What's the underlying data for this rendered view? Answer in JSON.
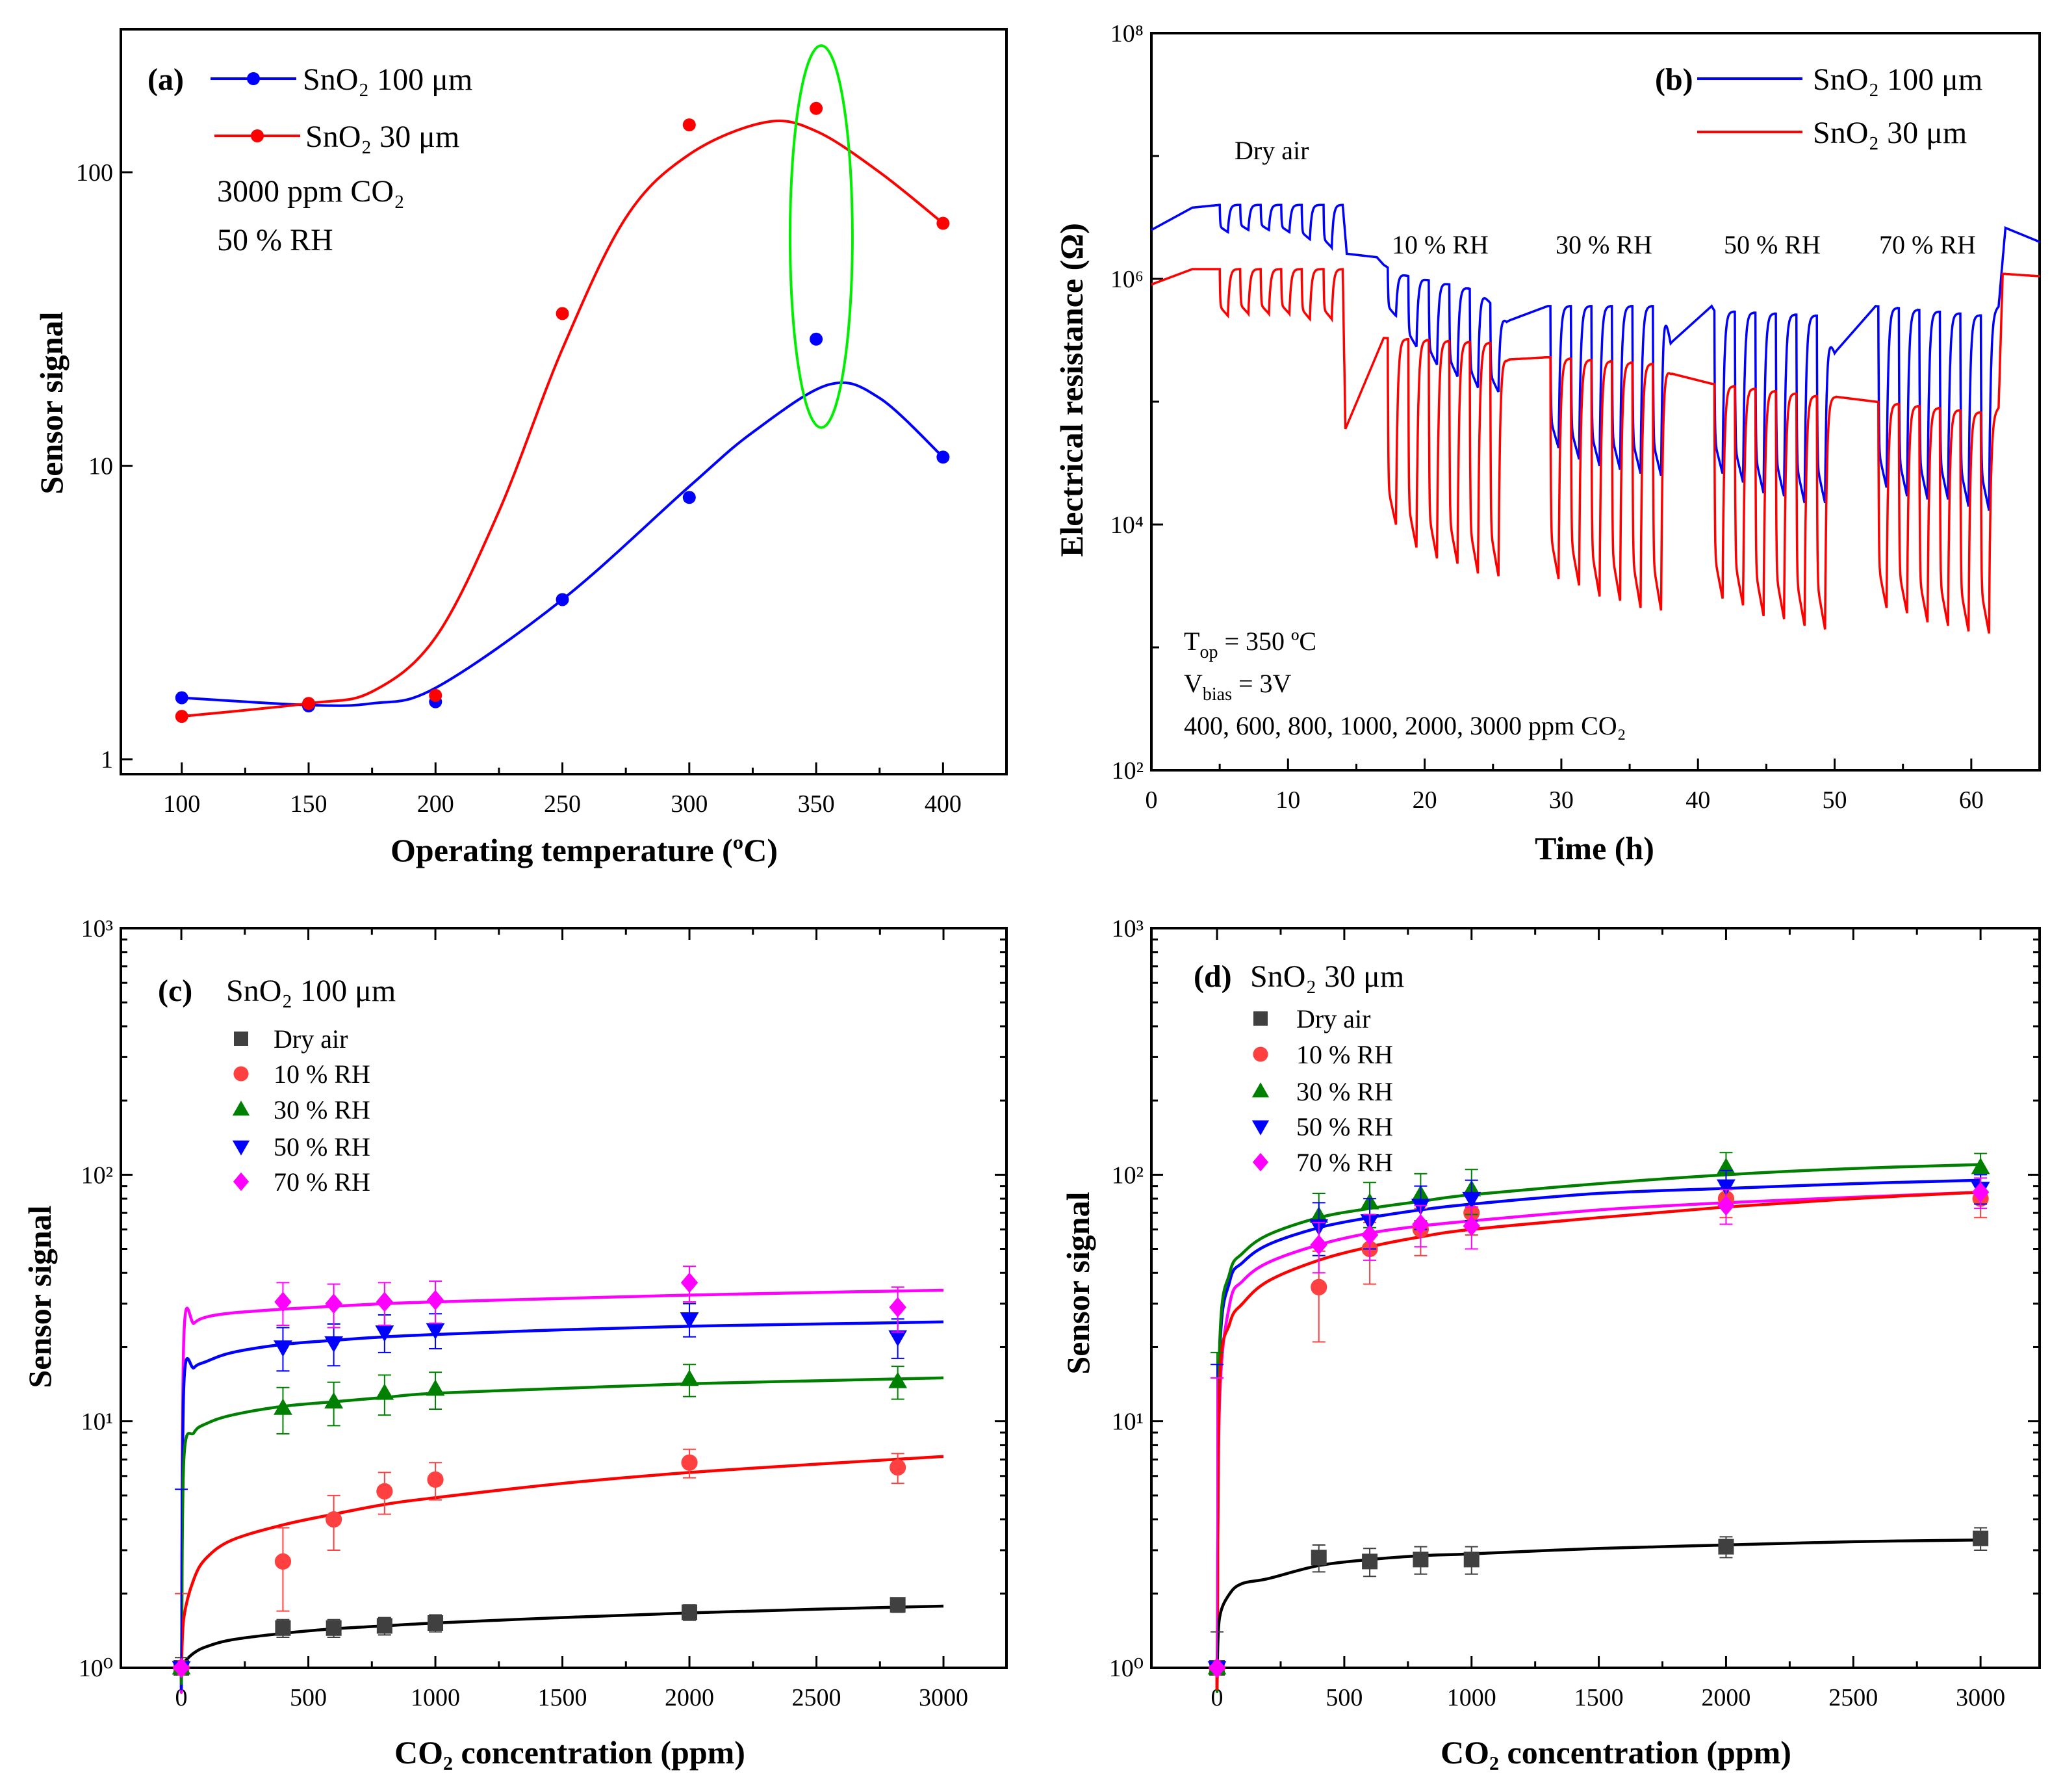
{
  "chart_data": [
    {
      "panel": "(a)",
      "type": "scatter",
      "xlabel": "Operating temperature (ºC)",
      "ylabel": "Sensor signal",
      "xlim": [
        76,
        425
      ],
      "ylim": [
        0.89,
        307
      ],
      "yscale": "log",
      "xticks": [
        100,
        150,
        200,
        250,
        300,
        350,
        400
      ],
      "xtick_labels": [
        "100",
        "150",
        "200",
        "250",
        "300",
        "350",
        "400"
      ],
      "yticks": [
        1,
        10,
        100
      ],
      "ytick_labels": [
        "1",
        "10",
        "100"
      ],
      "annotations": [
        "3000 ppm CO₂",
        "50 % RH"
      ],
      "highlight": {
        "shape": "ellipse",
        "color": "#00ee00",
        "x": 352,
        "y_range": [
          13.5,
          270
        ]
      },
      "series": [
        {
          "name": "SnO₂ 100 μm",
          "color": "#0000ff",
          "x": [
            100,
            150,
            200,
            250,
            300,
            350,
            400
          ],
          "y": [
            1.62,
            1.52,
            1.57,
            3.5,
            7.8,
            27,
            10.7
          ],
          "fit_x": [
            100,
            150,
            175,
            200,
            250,
            300,
            325,
            355,
            375,
            400
          ],
          "fit_y": [
            1.62,
            1.53,
            1.55,
            1.75,
            3.5,
            8.5,
            13,
            18.9,
            17,
            10.7
          ]
        },
        {
          "name": "SnO₂  30 μm",
          "color": "#ff0000",
          "x": [
            100,
            150,
            200,
            250,
            300,
            350,
            400
          ],
          "y": [
            1.4,
            1.55,
            1.65,
            33,
            145,
            165,
            67
          ],
          "fit_x": [
            100,
            150,
            175,
            200,
            225,
            250,
            275,
            300,
            330,
            350,
            375,
            400
          ],
          "fit_y": [
            1.4,
            1.55,
            1.7,
            2.6,
            7,
            25,
            70,
            115,
            148,
            138,
            100,
            67
          ]
        }
      ]
    },
    {
      "panel": "(b)",
      "type": "line",
      "xlabel": "Time (h)",
      "ylabel": "Electrical resistance (Ω)",
      "xlim": [
        0,
        65
      ],
      "ylim": [
        100,
        100000000
      ],
      "yscale": "log",
      "xticks": [
        0,
        10,
        20,
        30,
        40,
        50,
        60
      ],
      "xtick_labels": [
        "0",
        "10",
        "20",
        "30",
        "40",
        "50",
        "60"
      ],
      "yticks": [
        100,
        10000,
        1000000,
        100000000
      ],
      "ytick_labels": [
        "10²",
        "10⁴",
        "10⁶",
        "10⁸"
      ],
      "region_labels": [
        "Dry air",
        "10 % RH",
        "30 % RH",
        "50 % RH",
        "70 % RH"
      ],
      "conditions": {
        "top": {
          "symbol": "T",
          "sub": "op",
          "rest": " = 350 ºC"
        },
        "bias": {
          "symbol": "V",
          "sub": "bias",
          "rest": " = 3V"
        },
        "concentrations": "400, 600, 800, 1000, 2000, 3000 ppm CO₂"
      },
      "pulse_times": [
        5,
        6.5,
        8,
        9.5,
        11,
        12.6,
        17.3,
        18.8,
        20.3,
        21.8,
        23.3,
        24.8,
        29.2,
        30.7,
        32.2,
        33.7,
        35.2,
        36.7,
        41.2,
        42.7,
        44.2,
        45.7,
        47.2,
        48.7,
        53.2,
        54.7,
        56.2,
        57.7,
        59.2,
        60.7
      ],
      "series": [
        {
          "name": "SnO₂ 100 μm",
          "color": "#0000ff",
          "baseline": [
            [
              0,
              2500000
            ],
            [
              3,
              3800000
            ],
            [
              5,
              4000000
            ],
            [
              14,
              4000000
            ],
            [
              14.3,
              1600000
            ],
            [
              16.5,
              1500000
            ],
            [
              17,
              1300000
            ],
            [
              18,
              1100000
            ],
            [
              24,
              800000
            ],
            [
              26,
              450000
            ],
            [
              29,
              600000
            ],
            [
              37.5,
              600000
            ],
            [
              38,
              300000
            ],
            [
              41,
              600000
            ],
            [
              41.2,
              550000
            ],
            [
              49,
              500000
            ],
            [
              50,
              250000
            ],
            [
              53,
              600000
            ],
            [
              61,
              500000
            ],
            [
              62,
              600000
            ],
            [
              62.5,
              2600000
            ],
            [
              65,
              2000000
            ]
          ],
          "pulse_minima": [
            2400000,
            2500000,
            2500000,
            2400000,
            2100000,
            1800000,
            500000,
            280000,
            200000,
            160000,
            130000,
            120000,
            42000,
            34000,
            30000,
            28000,
            26000,
            25000,
            26000,
            22000,
            18000,
            17000,
            15000,
            15000,
            20000,
            17000,
            16000,
            16000,
            14000,
            13000
          ]
        },
        {
          "name": "SnO₂   30 μm",
          "color": "#ff0000",
          "baseline": [
            [
              0,
              900000
            ],
            [
              3,
              1200000
            ],
            [
              14,
              1200000
            ],
            [
              14.2,
              60000
            ],
            [
              17,
              330000
            ],
            [
              25,
              300000
            ],
            [
              26,
              220000
            ],
            [
              29,
              230000
            ],
            [
              37.5,
              200000
            ],
            [
              38,
              170000
            ],
            [
              41,
              140000
            ],
            [
              49,
              110000
            ],
            [
              50,
              110000
            ],
            [
              53,
              100000
            ],
            [
              61.5,
              80000
            ],
            [
              62,
              90000
            ],
            [
              62.3,
              1100000
            ],
            [
              65,
              1050000
            ]
          ],
          "pulse_minima": [
            500000,
            520000,
            520000,
            520000,
            470000,
            470000,
            10000,
            6500,
            5300,
            4800,
            4000,
            3800,
            3600,
            3200,
            2600,
            2400,
            2100,
            2000,
            2500,
            2200,
            1800,
            1700,
            1500,
            1400,
            2100,
            1900,
            1600,
            1500,
            1350,
            1300
          ]
        }
      ]
    },
    {
      "panel": "(c)",
      "title": "SnO₂ 100 μm",
      "type": "scatter",
      "xlabel": "CO₂ concentration (ppm)",
      "ylabel": "Sensor signal",
      "xlim": [
        -238,
        3248
      ],
      "ylim": [
        1,
        1000
      ],
      "yscale": "log",
      "xticks": [
        0,
        500,
        1000,
        1500,
        2000,
        2500,
        3000
      ],
      "xtick_labels": [
        "0",
        "500",
        "1000",
        "1500",
        "2000",
        "2500",
        "3000"
      ],
      "yticks": [
        1,
        10,
        100,
        1000
      ],
      "ytick_labels": [
        "10⁰",
        "10¹",
        "10²",
        "10³"
      ],
      "fit_x": [
        1,
        10,
        50,
        100,
        200,
        400,
        600,
        800,
        1000,
        1500,
        2000,
        2500,
        3000
      ],
      "series": [
        {
          "name": "Dry air",
          "color": "#404040",
          "fit_color": "#000000",
          "marker": "square",
          "x": [
            0,
            400,
            600,
            800,
            1000,
            2000,
            2820
          ],
          "y": [
            1,
            1.45,
            1.45,
            1.48,
            1.52,
            1.68,
            1.8
          ],
          "err": [
            0.1,
            0.12,
            0.12,
            0.12,
            0.12,
            0.12,
            0.12
          ],
          "fit_y": [
            1,
            1.05,
            1.15,
            1.22,
            1.3,
            1.38,
            1.44,
            1.48,
            1.52,
            1.6,
            1.67,
            1.73,
            1.78
          ]
        },
        {
          "name": "10 % RH",
          "color": "#ff4040",
          "fit_color": "#ff0000",
          "marker": "circle",
          "x": [
            0,
            400,
            600,
            800,
            1000,
            2000,
            2820
          ],
          "y": [
            1,
            2.7,
            4.0,
            5.2,
            5.8,
            6.8,
            6.5
          ],
          "err": [
            1,
            1.0,
            1.0,
            1.0,
            1.0,
            0.9,
            0.9
          ],
          "fit_y": [
            1,
            1.6,
            2.3,
            2.8,
            3.3,
            3.8,
            4.2,
            4.6,
            4.9,
            5.6,
            6.2,
            6.7,
            7.2
          ]
        },
        {
          "name": "30 % RH",
          "color": "#008000",
          "fit_color": "#008000",
          "marker": "triangle-up",
          "x": [
            0,
            400,
            600,
            800,
            1000,
            2000,
            2820
          ],
          "y": [
            1,
            11.3,
            12,
            13,
            13.5,
            14.8,
            14.5
          ],
          "err": [
            0,
            2.4,
            2.4,
            2.4,
            2.3,
            2.2,
            2.2
          ],
          "fit_y": [
            1,
            7,
            9,
            9.8,
            10.6,
            11.5,
            12,
            12.5,
            13,
            13.6,
            14.2,
            14.6,
            15
          ]
        },
        {
          "name": "50 % RH",
          "color": "#0000ff",
          "fit_color": "#0000ff",
          "marker": "triangle-down",
          "x": [
            0,
            400,
            600,
            800,
            1000,
            2000,
            2820
          ],
          "y": [
            1,
            20,
            20.8,
            23,
            23.5,
            26,
            22
          ],
          "err": [
            4.3,
            4,
            4,
            4,
            3.8,
            4,
            4
          ],
          "fit_y": [
            1,
            14,
            16.5,
            17.5,
            19,
            20.5,
            21.3,
            22,
            22.5,
            23.5,
            24.3,
            24.8,
            25.3
          ]
        },
        {
          "name": "70 % RH",
          "color": "#ff00ff",
          "fit_color": "#ff00ff",
          "marker": "diamond",
          "x": [
            0,
            400,
            600,
            800,
            1000,
            2000,
            2820
          ],
          "y": [
            1,
            30.5,
            30,
            30.5,
            31,
            36.5,
            29
          ],
          "err": [
            0,
            6,
            6,
            6,
            6,
            6,
            6
          ],
          "fit_y": [
            1,
            22,
            25,
            26.5,
            27.5,
            28.5,
            29.3,
            30,
            30.5,
            31.5,
            32.5,
            33.3,
            34
          ]
        }
      ]
    },
    {
      "panel": "(d)",
      "title": "SnO₂ 30 μm",
      "type": "scatter",
      "xlabel": "CO₂ concentration (ppm)",
      "ylabel": "Sensor signal",
      "xlim": [
        -258,
        3232
      ],
      "ylim": [
        1,
        1000
      ],
      "yscale": "log",
      "xticks": [
        0,
        500,
        1000,
        1500,
        2000,
        2500,
        3000
      ],
      "xtick_labels": [
        "0",
        "500",
        "1000",
        "1500",
        "2000",
        "2500",
        "3000"
      ],
      "yticks": [
        1,
        10,
        100,
        1000
      ],
      "ytick_labels": [
        "10⁰",
        "10¹",
        "10²",
        "10³"
      ],
      "fit_x": [
        1,
        10,
        50,
        100,
        200,
        400,
        600,
        800,
        1000,
        1500,
        2000,
        2500,
        3000
      ],
      "series": [
        {
          "name": "Dry air",
          "color": "#404040",
          "fit_color": "#000000",
          "marker": "square",
          "x": [
            0,
            400,
            600,
            800,
            1000,
            2000,
            3000
          ],
          "y": [
            1,
            2.8,
            2.7,
            2.75,
            2.75,
            3.1,
            3.35
          ],
          "err": [
            0.4,
            0.35,
            0.35,
            0.35,
            0.35,
            0.3,
            0.35
          ],
          "fit_y": [
            1,
            1.6,
            2.0,
            2.2,
            2.3,
            2.6,
            2.75,
            2.85,
            2.9,
            3.05,
            3.15,
            3.25,
            3.3
          ]
        },
        {
          "name": "10 % RH",
          "color": "#ff4040",
          "fit_color": "#ff0000",
          "marker": "circle",
          "x": [
            0,
            400,
            600,
            800,
            1000,
            2000,
            3000
          ],
          "y": [
            1,
            35,
            50,
            60,
            70,
            80,
            80
          ],
          "err": [
            14,
            14,
            14,
            13,
            13,
            13,
            13
          ],
          "fit_y": [
            1,
            14,
            25,
            30,
            37,
            45,
            51,
            56,
            60,
            67,
            74,
            80,
            85
          ]
        },
        {
          "name": "30 % RH",
          "color": "#008000",
          "fit_color": "#008000",
          "marker": "triangle-up",
          "x": [
            0,
            400,
            600,
            800,
            1000,
            2000,
            3000
          ],
          "y": [
            1,
            68,
            77,
            83,
            87,
            107,
            107
          ],
          "err": [
            18,
            16,
            16,
            18,
            18,
            16,
            15
          ],
          "fit_y": [
            1,
            20,
            40,
            48,
            57,
            67,
            73,
            78,
            83,
            92,
            100,
            106,
            110
          ]
        },
        {
          "name": "50 % RH",
          "color": "#0000ff",
          "fit_color": "#0000ff",
          "marker": "triangle-down",
          "x": [
            0,
            400,
            600,
            800,
            1000,
            2000,
            3000
          ],
          "y": [
            1,
            62,
            65,
            75,
            80,
            90,
            88
          ],
          "err": [
            16,
            15,
            15,
            15,
            15,
            14,
            12
          ],
          "fit_y": [
            1,
            18,
            37,
            44,
            52,
            61,
            67,
            72,
            76,
            84,
            88,
            92,
            95
          ]
        },
        {
          "name": "70 % RH",
          "color": "#ff00ff",
          "fit_color": "#ff00ff",
          "marker": "diamond",
          "x": [
            0,
            400,
            600,
            800,
            1000,
            2000,
            3000
          ],
          "y": [
            1,
            52,
            57,
            63,
            62,
            75,
            85
          ],
          "err": [
            14,
            12,
            12,
            12,
            12,
            12,
            12
          ],
          "fit_y": [
            1,
            12,
            30,
            37,
            44,
            52,
            58,
            62,
            65,
            72,
            77,
            81,
            85
          ]
        }
      ]
    }
  ]
}
